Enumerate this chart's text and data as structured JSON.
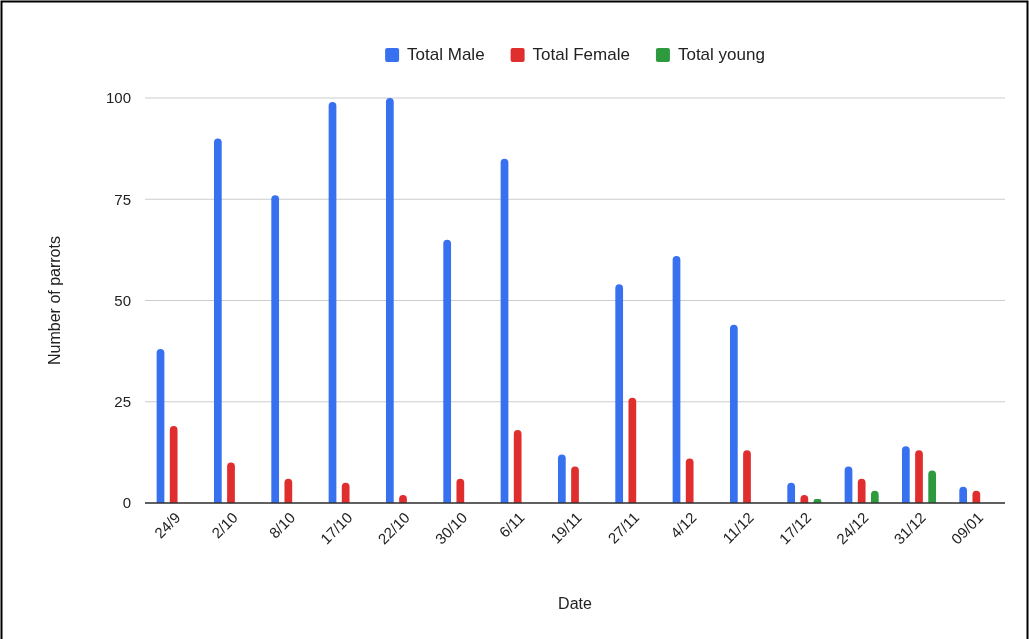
{
  "chart_data": {
    "type": "bar",
    "xlabel": "Date",
    "ylabel": "Number of parrots",
    "categories": [
      "24/9",
      "2/10",
      "8/10",
      "17/10",
      "22/10",
      "30/10",
      "6/11",
      "19/11",
      "27/11",
      "4/12",
      "11/12",
      "17/12",
      "24/12",
      "31/12",
      "09/01"
    ],
    "series": [
      {
        "name": "Total Male",
        "color": "#3871f0",
        "values": [
          38,
          90,
          76,
          99,
          100,
          65,
          85,
          12,
          54,
          61,
          44,
          5,
          9,
          14,
          4
        ]
      },
      {
        "name": "Total Female",
        "color": "#e02d2d",
        "values": [
          19,
          10,
          6,
          5,
          2,
          6,
          18,
          9,
          26,
          11,
          13,
          2,
          6,
          13,
          3
        ]
      },
      {
        "name": "Total young",
        "color": "#2e9a3e",
        "values": [
          null,
          null,
          null,
          null,
          null,
          null,
          null,
          null,
          null,
          null,
          null,
          1,
          3,
          8,
          null
        ]
      }
    ],
    "ylim": [
      0,
      100
    ],
    "yticks": [
      0,
      25,
      50,
      75,
      100
    ],
    "grid": "y",
    "legend": "top"
  }
}
